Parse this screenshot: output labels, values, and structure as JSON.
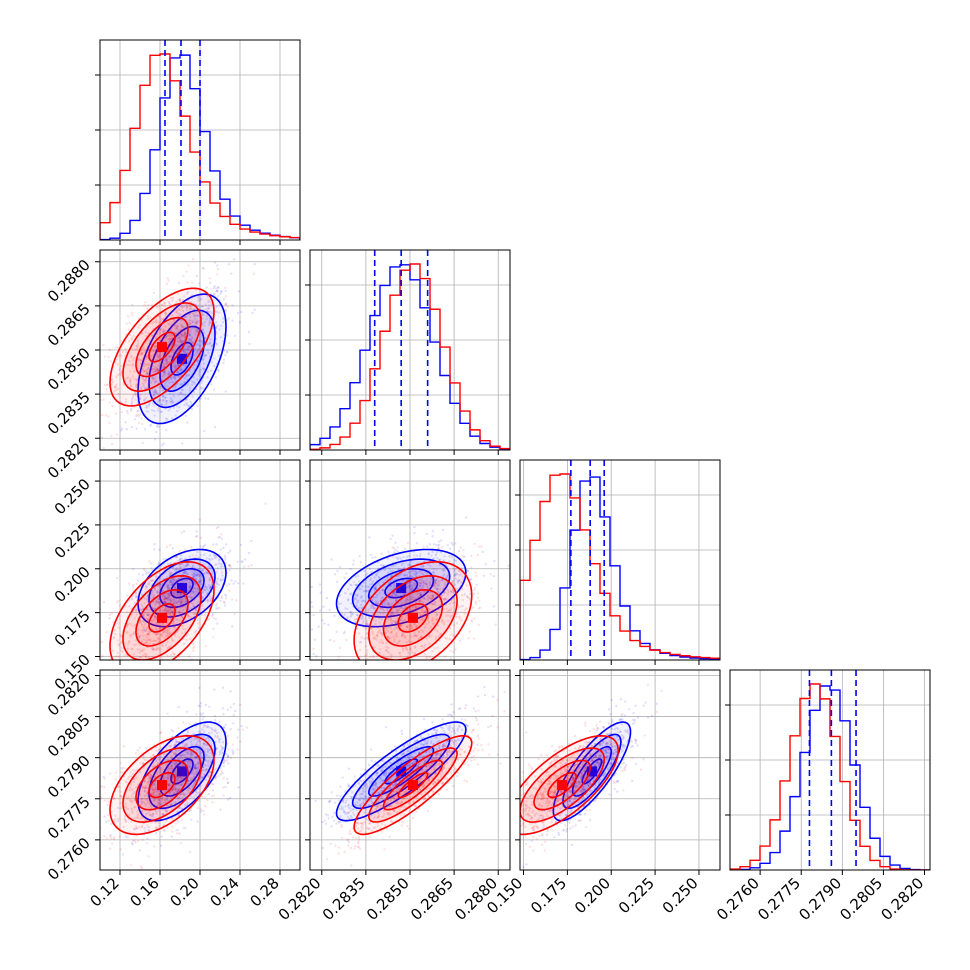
{
  "chart_data": {
    "type": "scatter",
    "variant": "corner-plot",
    "grid": true,
    "colors": {
      "series_a": "#0000ff",
      "series_b": "#ff0000",
      "quantile_line": "#0000ff"
    },
    "parameters": [
      {
        "range": [
          0.1,
          0.3
        ],
        "ticks": [
          0.12,
          0.16,
          0.2,
          0.24,
          0.28
        ],
        "tick_labels": [
          "0.12",
          "0.16",
          "0.20",
          "0.24",
          "0.28"
        ],
        "quantiles": [
          0.165,
          0.181,
          0.2
        ]
      },
      {
        "range": [
          0.2816,
          0.2884
        ],
        "ticks": [
          0.282,
          0.2835,
          0.285,
          0.2865,
          0.288
        ],
        "tick_labels": [
          "0.2820",
          "0.2835",
          "0.2850",
          "0.2865",
          "0.2880"
        ],
        "quantiles": [
          0.2838,
          0.2847,
          0.2856
        ]
      },
      {
        "range": [
          0.148,
          0.262
        ],
        "ticks": [
          0.15,
          0.175,
          0.2,
          0.225,
          0.25
        ],
        "tick_labels": [
          "0.150",
          "0.175",
          "0.200",
          "0.225",
          "0.250"
        ],
        "quantiles": [
          0.177,
          0.188,
          0.196
        ]
      },
      {
        "range": [
          0.2749,
          0.2822
        ],
        "ticks": [
          0.276,
          0.2775,
          0.279,
          0.2805,
          0.282
        ],
        "tick_labels": [
          "0.2760",
          "0.2775",
          "0.2790",
          "0.2805",
          "0.2820"
        ],
        "quantiles": [
          0.2778,
          0.2786,
          0.2795
        ]
      }
    ],
    "series": [
      {
        "color": "#0000ff",
        "means": [
          0.182,
          0.2847,
          0.189,
          0.2785
        ],
        "sds": [
          0.022,
          0.0011,
          0.011,
          0.0009
        ]
      },
      {
        "color": "#ff0000",
        "means": [
          0.162,
          0.2851,
          0.172,
          0.278
        ],
        "sds": [
          0.026,
          0.001,
          0.016,
          0.0009
        ]
      }
    ],
    "correlations": [
      {
        "pair": [
          0,
          1
        ],
        "series_a": 0.5,
        "series_b": 0.6
      },
      {
        "pair": [
          0,
          2
        ],
        "series_a": 0.4,
        "series_b": 0.5
      },
      {
        "pair": [
          1,
          2
        ],
        "series_a": 0.4,
        "series_b": 0.4
      },
      {
        "pair": [
          0,
          3
        ],
        "series_a": 0.6,
        "series_b": 0.5
      },
      {
        "pair": [
          1,
          3
        ],
        "series_a": 0.85,
        "series_b": 0.85
      },
      {
        "pair": [
          2,
          3
        ],
        "series_a": 0.8,
        "series_b": 0.7
      }
    ]
  }
}
